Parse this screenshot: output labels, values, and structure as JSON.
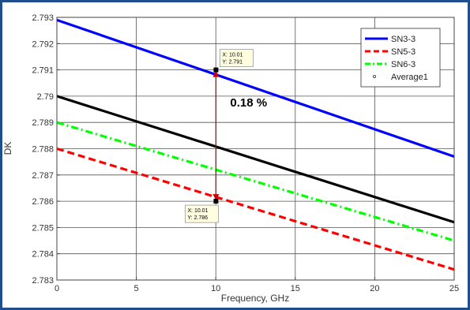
{
  "chart_data": {
    "type": "line",
    "xlabel": "Frequency, GHz",
    "ylabel": "DK",
    "xlim": [
      0,
      25
    ],
    "ylim": [
      2.783,
      2.793
    ],
    "x_ticks": [
      "0",
      "5",
      "10",
      "15",
      "20",
      "25"
    ],
    "y_ticks": [
      "2.783",
      "2.784",
      "2.785",
      "2.786",
      "2.787",
      "2.788",
      "2.789",
      "2.79",
      "2.791",
      "2.792",
      "2.793"
    ],
    "grid": true,
    "legend_position": "top-right",
    "series": [
      {
        "name": "SN3-3",
        "x": [
          0,
          25
        ],
        "y": [
          2.7929,
          2.7877
        ],
        "color": "#0000ff",
        "style": "solid"
      },
      {
        "name": "SN5-3",
        "x": [
          0,
          25
        ],
        "y": [
          2.788,
          2.7834
        ],
        "color": "#ff0000",
        "style": "dashed"
      },
      {
        "name": "SN6-3",
        "x": [
          0,
          25
        ],
        "y": [
          2.789,
          2.7845
        ],
        "color": "#00ff00",
        "style": "dashdot"
      },
      {
        "name": "Average1",
        "x": [
          0,
          25
        ],
        "y": [
          2.79,
          2.7852
        ],
        "color": "#000000",
        "style": "solid"
      }
    ],
    "annotations": {
      "datatip_top": {
        "x": 10.01,
        "y": 2.791,
        "line1": "X: 10.01",
        "line2": "Y: 2.791"
      },
      "datatip_bottom": {
        "x": 10.01,
        "y": 2.786,
        "line1": "X: 10.01",
        "line2": "Y: 2.786"
      },
      "difference_label": "0.18 %",
      "arrow_color": "#cc0000"
    }
  }
}
